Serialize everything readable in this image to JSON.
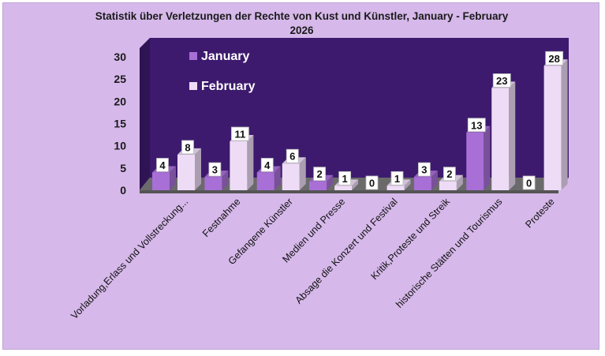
{
  "chart_data": {
    "type": "bar",
    "title": "Statistik über Verletzungen der Rechte von Kust und Künstler, January - February 2026",
    "title_lines": [
      "Statistik über Verletzungen der Rechte von Kust und Künstler, January - February",
      "2026"
    ],
    "categories": [
      "Vorladung,Erlass und  Vollstreckung...",
      "Festnahme",
      "Gefangene Künstler",
      "Medien und Presse",
      "Absage die Konzert und Festival",
      "Kritik,Proteste und  Streik",
      "historische Stätten und Tourismus",
      "Proteste"
    ],
    "series": [
      {
        "name": "January",
        "values": [
          4,
          3,
          4,
          2,
          0,
          3,
          13,
          0
        ],
        "color": "#a86fd6"
      },
      {
        "name": "February",
        "values": [
          8,
          11,
          6,
          1,
          1,
          2,
          23,
          28
        ],
        "color": "#eedcf6"
      }
    ],
    "yticks": [
      "0",
      "5",
      "10",
      "15",
      "20",
      "25",
      "30"
    ],
    "ylim": [
      0,
      30
    ],
    "xlabel": "",
    "ylabel": "",
    "legend_position": "top-left, inside plot",
    "grid": false,
    "colors": {
      "background": "#d6b8ea",
      "plot_wall": "#3d1a6e",
      "floor": "#555555"
    }
  }
}
